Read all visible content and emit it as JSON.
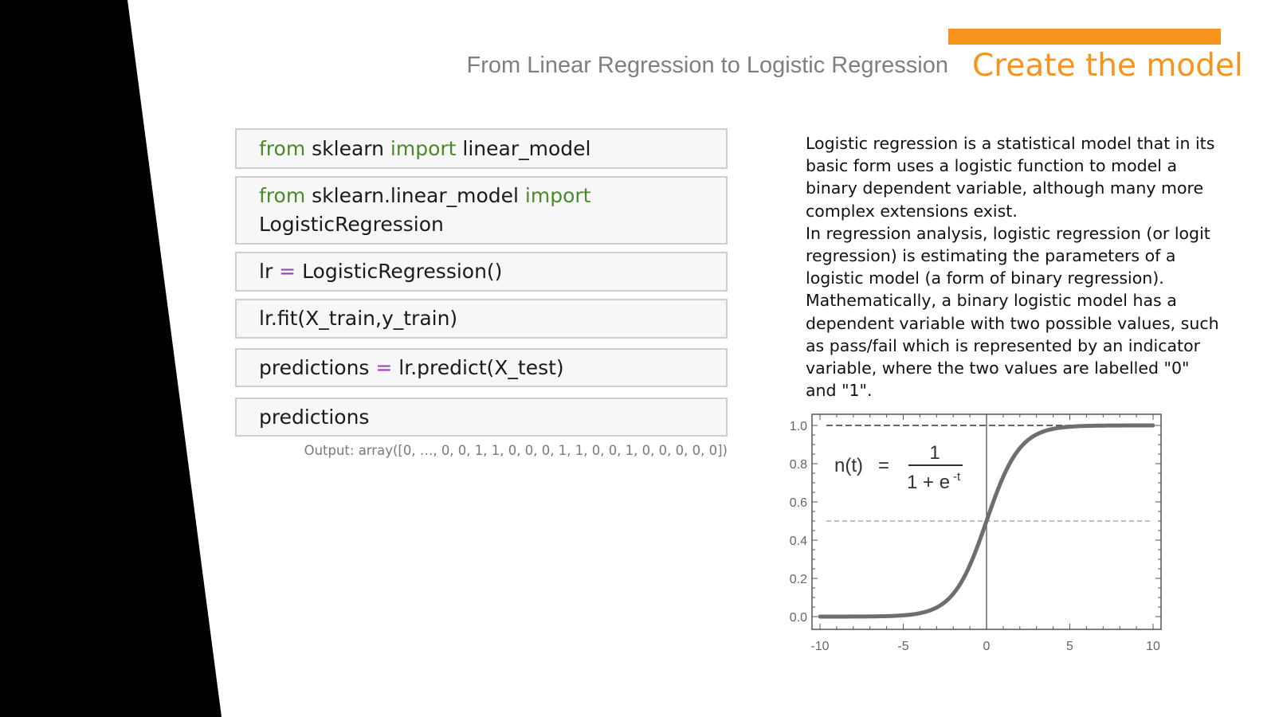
{
  "header": {
    "subtitle": "From Linear Regression to Logistic Regression",
    "title": "Create the model",
    "accent_color": "#f7941d"
  },
  "code": {
    "cells": [
      [
        {
          "t": "from",
          "k": "kw"
        },
        {
          "t": " sklearn ",
          "k": ""
        },
        {
          "t": "import",
          "k": "kw"
        },
        {
          "t": " linear_model",
          "k": ""
        }
      ],
      [
        {
          "t": "from",
          "k": "kw"
        },
        {
          "t": " sklearn.linear_model ",
          "k": ""
        },
        {
          "t": "import",
          "k": "kw"
        },
        {
          "t": "\nLogisticRegression",
          "k": ""
        }
      ],
      [
        {
          "t": "lr ",
          "k": ""
        },
        {
          "t": "=",
          "k": "op"
        },
        {
          "t": " LogisticRegression()",
          "k": ""
        }
      ],
      [
        {
          "t": "lr.fit(X_train,y_train)",
          "k": ""
        }
      ],
      [
        {
          "t": "predictions ",
          "k": ""
        },
        {
          "t": "=",
          "k": "op"
        },
        {
          "t": " lr.predict(X_test)",
          "k": ""
        }
      ],
      [
        {
          "t": "predictions",
          "k": ""
        }
      ]
    ],
    "output": "Output: array([0, …, 0, 0, 1, 1, 0, 0, 0, 1, 1, 0, 0, 1, 0, 0, 0, 0, 0])"
  },
  "description": {
    "paragraph_1": "Logistic regression is a statistical model that in its basic form uses a logistic function to model a binary dependent variable, although many more complex extensions exist.",
    "paragraph_2": "In regression analysis, logistic regression (or logit regression) is estimating the parameters of a logistic model (a form of binary regression). Mathematically, a binary logistic model has a dependent variable with two possible values, such as pass/fail which is represented by an indicator variable, where the two values are labelled \"0\" and \"1\"."
  },
  "chart_data": {
    "type": "line",
    "function": "sigmoid",
    "formula": {
      "lhs": "n(t)",
      "eq": "=",
      "numerator": "1",
      "denominator": "1 + e",
      "exponent": "-t"
    },
    "x_ticks": [
      "-10",
      "-5",
      "0",
      "5",
      "10"
    ],
    "y_ticks": [
      "0.0",
      "0.2",
      "0.4",
      "0.6",
      "0.8",
      "1.0"
    ],
    "xlim": [
      -10,
      10
    ],
    "ylim": [
      0,
      1
    ],
    "reference_lines": {
      "horizontal": [
        0.5,
        1.0
      ],
      "vertical": [
        0
      ]
    },
    "line_color": "#6e6e6e"
  }
}
